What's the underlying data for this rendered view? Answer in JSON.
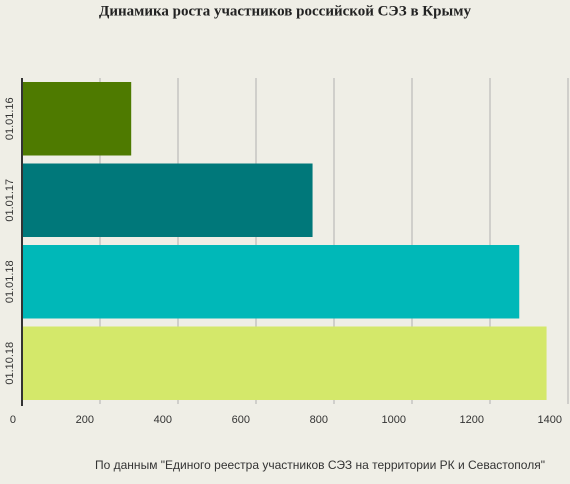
{
  "chart_data": {
    "type": "bar",
    "orientation": "horizontal",
    "title": "Динамика роста участников российской СЭЗ в Крыму",
    "categories": [
      "01.01.16",
      "01.01.17",
      "01.01.18",
      "01.10.18"
    ],
    "values": [
      280,
      745,
      1275,
      1345
    ],
    "colors": [
      "#4e7a00",
      "#00787a",
      "#00b8b8",
      "#d4e86a"
    ],
    "xlim": [
      0,
      1400
    ],
    "xticks": [
      0,
      200,
      400,
      600,
      800,
      1000,
      1200,
      1400
    ],
    "grid": true,
    "source": "По данным \"Единого реестра участников СЭЗ на территории РК и Севастополя\""
  }
}
